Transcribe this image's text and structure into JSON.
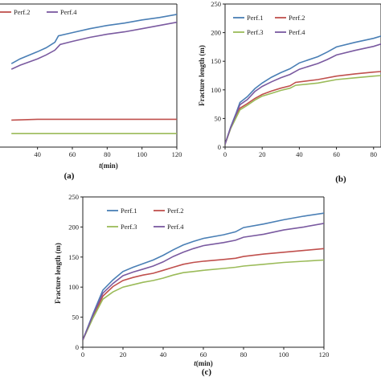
{
  "colors": {
    "perf1": "#4a7fb5",
    "perf2": "#c0504d",
    "perf3": "#9bbb59",
    "perf4": "#7a5aa0"
  },
  "chart_data": [
    {
      "id": "a",
      "panel_label": "(a)",
      "type": "line",
      "xlabel_italic": "t",
      "xlabel_unit": "(min)",
      "ylabel": "",
      "xlim": [
        0,
        120
      ],
      "x_ticks": [
        40,
        60,
        80,
        100,
        120
      ],
      "y_ticks": [],
      "legend_position": "top-left",
      "legend": [
        "Perf.2",
        "Perf.4"
      ],
      "series": [
        {
          "name": "Perf.1",
          "color_key": "perf1",
          "points": [
            [
              25,
              155
            ],
            [
              30,
              161
            ],
            [
              40,
              170
            ],
            [
              45,
              175
            ],
            [
              50,
              182
            ],
            [
              52,
              190
            ],
            [
              60,
              194
            ],
            [
              70,
              199
            ],
            [
              80,
              203
            ],
            [
              90,
              206
            ],
            [
              100,
              210
            ],
            [
              110,
              213
            ],
            [
              120,
              217
            ]
          ]
        },
        {
          "name": "Perf.2",
          "color_key": "perf2",
          "points": [
            [
              25,
              84
            ],
            [
              40,
              85
            ],
            [
              60,
              85
            ],
            [
              80,
              85
            ],
            [
              100,
              85
            ],
            [
              120,
              85
            ]
          ]
        },
        {
          "name": "Perf.3",
          "color_key": "perf3",
          "points": [
            [
              25,
              67
            ],
            [
              40,
              67
            ],
            [
              60,
              67
            ],
            [
              80,
              67
            ],
            [
              100,
              67
            ],
            [
              120,
              67
            ]
          ]
        },
        {
          "name": "Perf.4",
          "color_key": "perf4",
          "points": [
            [
              25,
              148
            ],
            [
              30,
              153
            ],
            [
              40,
              161
            ],
            [
              45,
              166
            ],
            [
              50,
              172
            ],
            [
              53,
              179
            ],
            [
              60,
              183
            ],
            [
              70,
              188
            ],
            [
              80,
              192
            ],
            [
              90,
              195
            ],
            [
              100,
              199
            ],
            [
              110,
              203
            ],
            [
              120,
              207
            ]
          ]
        }
      ]
    },
    {
      "id": "b",
      "panel_label": "(b)",
      "type": "line",
      "xlabel": "",
      "ylabel": "Fracture length (m)",
      "xlim": [
        0,
        84
      ],
      "ylim": [
        0,
        250
      ],
      "x_ticks": [
        0,
        20,
        40,
        60,
        80
      ],
      "y_ticks": [
        0,
        50,
        100,
        150,
        200,
        250
      ],
      "legend_position": "top-left",
      "legend": [
        "Perf.1",
        "Perf.2",
        "Perf.3",
        "Perf.4"
      ],
      "series": [
        {
          "name": "Perf.1",
          "color_key": "perf1",
          "points": [
            [
              0,
              5
            ],
            [
              3,
              35
            ],
            [
              6,
              60
            ],
            [
              8,
              78
            ],
            [
              12,
              88
            ],
            [
              16,
              102
            ],
            [
              20,
              112
            ],
            [
              25,
              122
            ],
            [
              30,
              130
            ],
            [
              35,
              137
            ],
            [
              40,
              147
            ],
            [
              50,
              158
            ],
            [
              55,
              166
            ],
            [
              60,
              175
            ],
            [
              70,
              183
            ],
            [
              80,
              190
            ],
            [
              84,
              194
            ]
          ]
        },
        {
          "name": "Perf.2",
          "color_key": "perf2",
          "points": [
            [
              0,
              5
            ],
            [
              3,
              33
            ],
            [
              6,
              55
            ],
            [
              8,
              68
            ],
            [
              12,
              76
            ],
            [
              16,
              85
            ],
            [
              20,
              92
            ],
            [
              25,
              98
            ],
            [
              30,
              103
            ],
            [
              35,
              107
            ],
            [
              38,
              113
            ],
            [
              50,
              118
            ],
            [
              60,
              124
            ],
            [
              70,
              128
            ],
            [
              80,
              131
            ],
            [
              84,
              132
            ]
          ]
        },
        {
          "name": "Perf.3",
          "color_key": "perf3",
          "points": [
            [
              0,
              5
            ],
            [
              3,
              32
            ],
            [
              6,
              52
            ],
            [
              8,
              65
            ],
            [
              12,
              73
            ],
            [
              16,
              82
            ],
            [
              20,
              89
            ],
            [
              25,
              94
            ],
            [
              30,
              99
            ],
            [
              35,
              103
            ],
            [
              38,
              108
            ],
            [
              50,
              112
            ],
            [
              60,
              118
            ],
            [
              70,
              121
            ],
            [
              80,
              124
            ],
            [
              84,
              125
            ]
          ]
        },
        {
          "name": "Perf.4",
          "color_key": "perf4",
          "points": [
            [
              0,
              5
            ],
            [
              3,
              34
            ],
            [
              6,
              58
            ],
            [
              8,
              74
            ],
            [
              12,
              83
            ],
            [
              16,
              97
            ],
            [
              20,
              106
            ],
            [
              25,
              114
            ],
            [
              30,
              121
            ],
            [
              35,
              127
            ],
            [
              40,
              136
            ],
            [
              50,
              146
            ],
            [
              55,
              153
            ],
            [
              60,
              161
            ],
            [
              70,
              169
            ],
            [
              80,
              176
            ],
            [
              84,
              180
            ]
          ]
        }
      ]
    },
    {
      "id": "c",
      "panel_label": "(c)",
      "type": "line",
      "xlabel_italic": "t",
      "xlabel_unit": "(min)",
      "ylabel": "Fracture length (m)",
      "xlim": [
        0,
        120
      ],
      "ylim": [
        0,
        250
      ],
      "x_ticks": [
        0,
        20,
        40,
        60,
        80,
        100,
        120
      ],
      "y_ticks": [
        0,
        50,
        100,
        150,
        200,
        250
      ],
      "legend_position": "top-left",
      "legend": [
        "Perf.1",
        "Perf.2",
        "Perf.3",
        "Perf.4"
      ],
      "series": [
        {
          "name": "Perf.1",
          "color_key": "perf1",
          "points": [
            [
              0,
              12
            ],
            [
              5,
              55
            ],
            [
              10,
              95
            ],
            [
              15,
              112
            ],
            [
              20,
              126
            ],
            [
              25,
              133
            ],
            [
              30,
              139
            ],
            [
              35,
              145
            ],
            [
              40,
              153
            ],
            [
              45,
              162
            ],
            [
              50,
              170
            ],
            [
              55,
              176
            ],
            [
              60,
              181
            ],
            [
              70,
              187
            ],
            [
              76,
              192
            ],
            [
              80,
              199
            ],
            [
              90,
              205
            ],
            [
              100,
              212
            ],
            [
              110,
              218
            ],
            [
              120,
              223
            ]
          ]
        },
        {
          "name": "Perf.2",
          "color_key": "perf2",
          "points": [
            [
              0,
              12
            ],
            [
              5,
              50
            ],
            [
              10,
              85
            ],
            [
              15,
              101
            ],
            [
              20,
              111
            ],
            [
              25,
              116
            ],
            [
              30,
              120
            ],
            [
              35,
              123
            ],
            [
              40,
              128
            ],
            [
              45,
              133
            ],
            [
              50,
              138
            ],
            [
              55,
              141
            ],
            [
              60,
              143
            ],
            [
              70,
              146
            ],
            [
              76,
              148
            ],
            [
              80,
              151
            ],
            [
              90,
              155
            ],
            [
              100,
              158
            ],
            [
              110,
              161
            ],
            [
              120,
              164
            ]
          ]
        },
        {
          "name": "Perf.3",
          "color_key": "perf3",
          "points": [
            [
              0,
              12
            ],
            [
              5,
              48
            ],
            [
              10,
              80
            ],
            [
              15,
              92
            ],
            [
              20,
              100
            ],
            [
              25,
              104
            ],
            [
              30,
              108
            ],
            [
              35,
              111
            ],
            [
              40,
              115
            ],
            [
              45,
              120
            ],
            [
              50,
              124
            ],
            [
              55,
              126
            ],
            [
              60,
              128
            ],
            [
              70,
              131
            ],
            [
              76,
              133
            ],
            [
              80,
              135
            ],
            [
              90,
              138
            ],
            [
              100,
              141
            ],
            [
              110,
              143
            ],
            [
              120,
              145
            ]
          ]
        },
        {
          "name": "Perf.4",
          "color_key": "perf4",
          "points": [
            [
              0,
              12
            ],
            [
              5,
              53
            ],
            [
              10,
              90
            ],
            [
              15,
              106
            ],
            [
              20,
              119
            ],
            [
              25,
              125
            ],
            [
              30,
              130
            ],
            [
              35,
              135
            ],
            [
              40,
              142
            ],
            [
              45,
              151
            ],
            [
              50,
              158
            ],
            [
              55,
              164
            ],
            [
              60,
              169
            ],
            [
              70,
              174
            ],
            [
              76,
              178
            ],
            [
              80,
              183
            ],
            [
              90,
              188
            ],
            [
              100,
              195
            ],
            [
              110,
              200
            ],
            [
              120,
              206
            ]
          ]
        }
      ]
    }
  ]
}
